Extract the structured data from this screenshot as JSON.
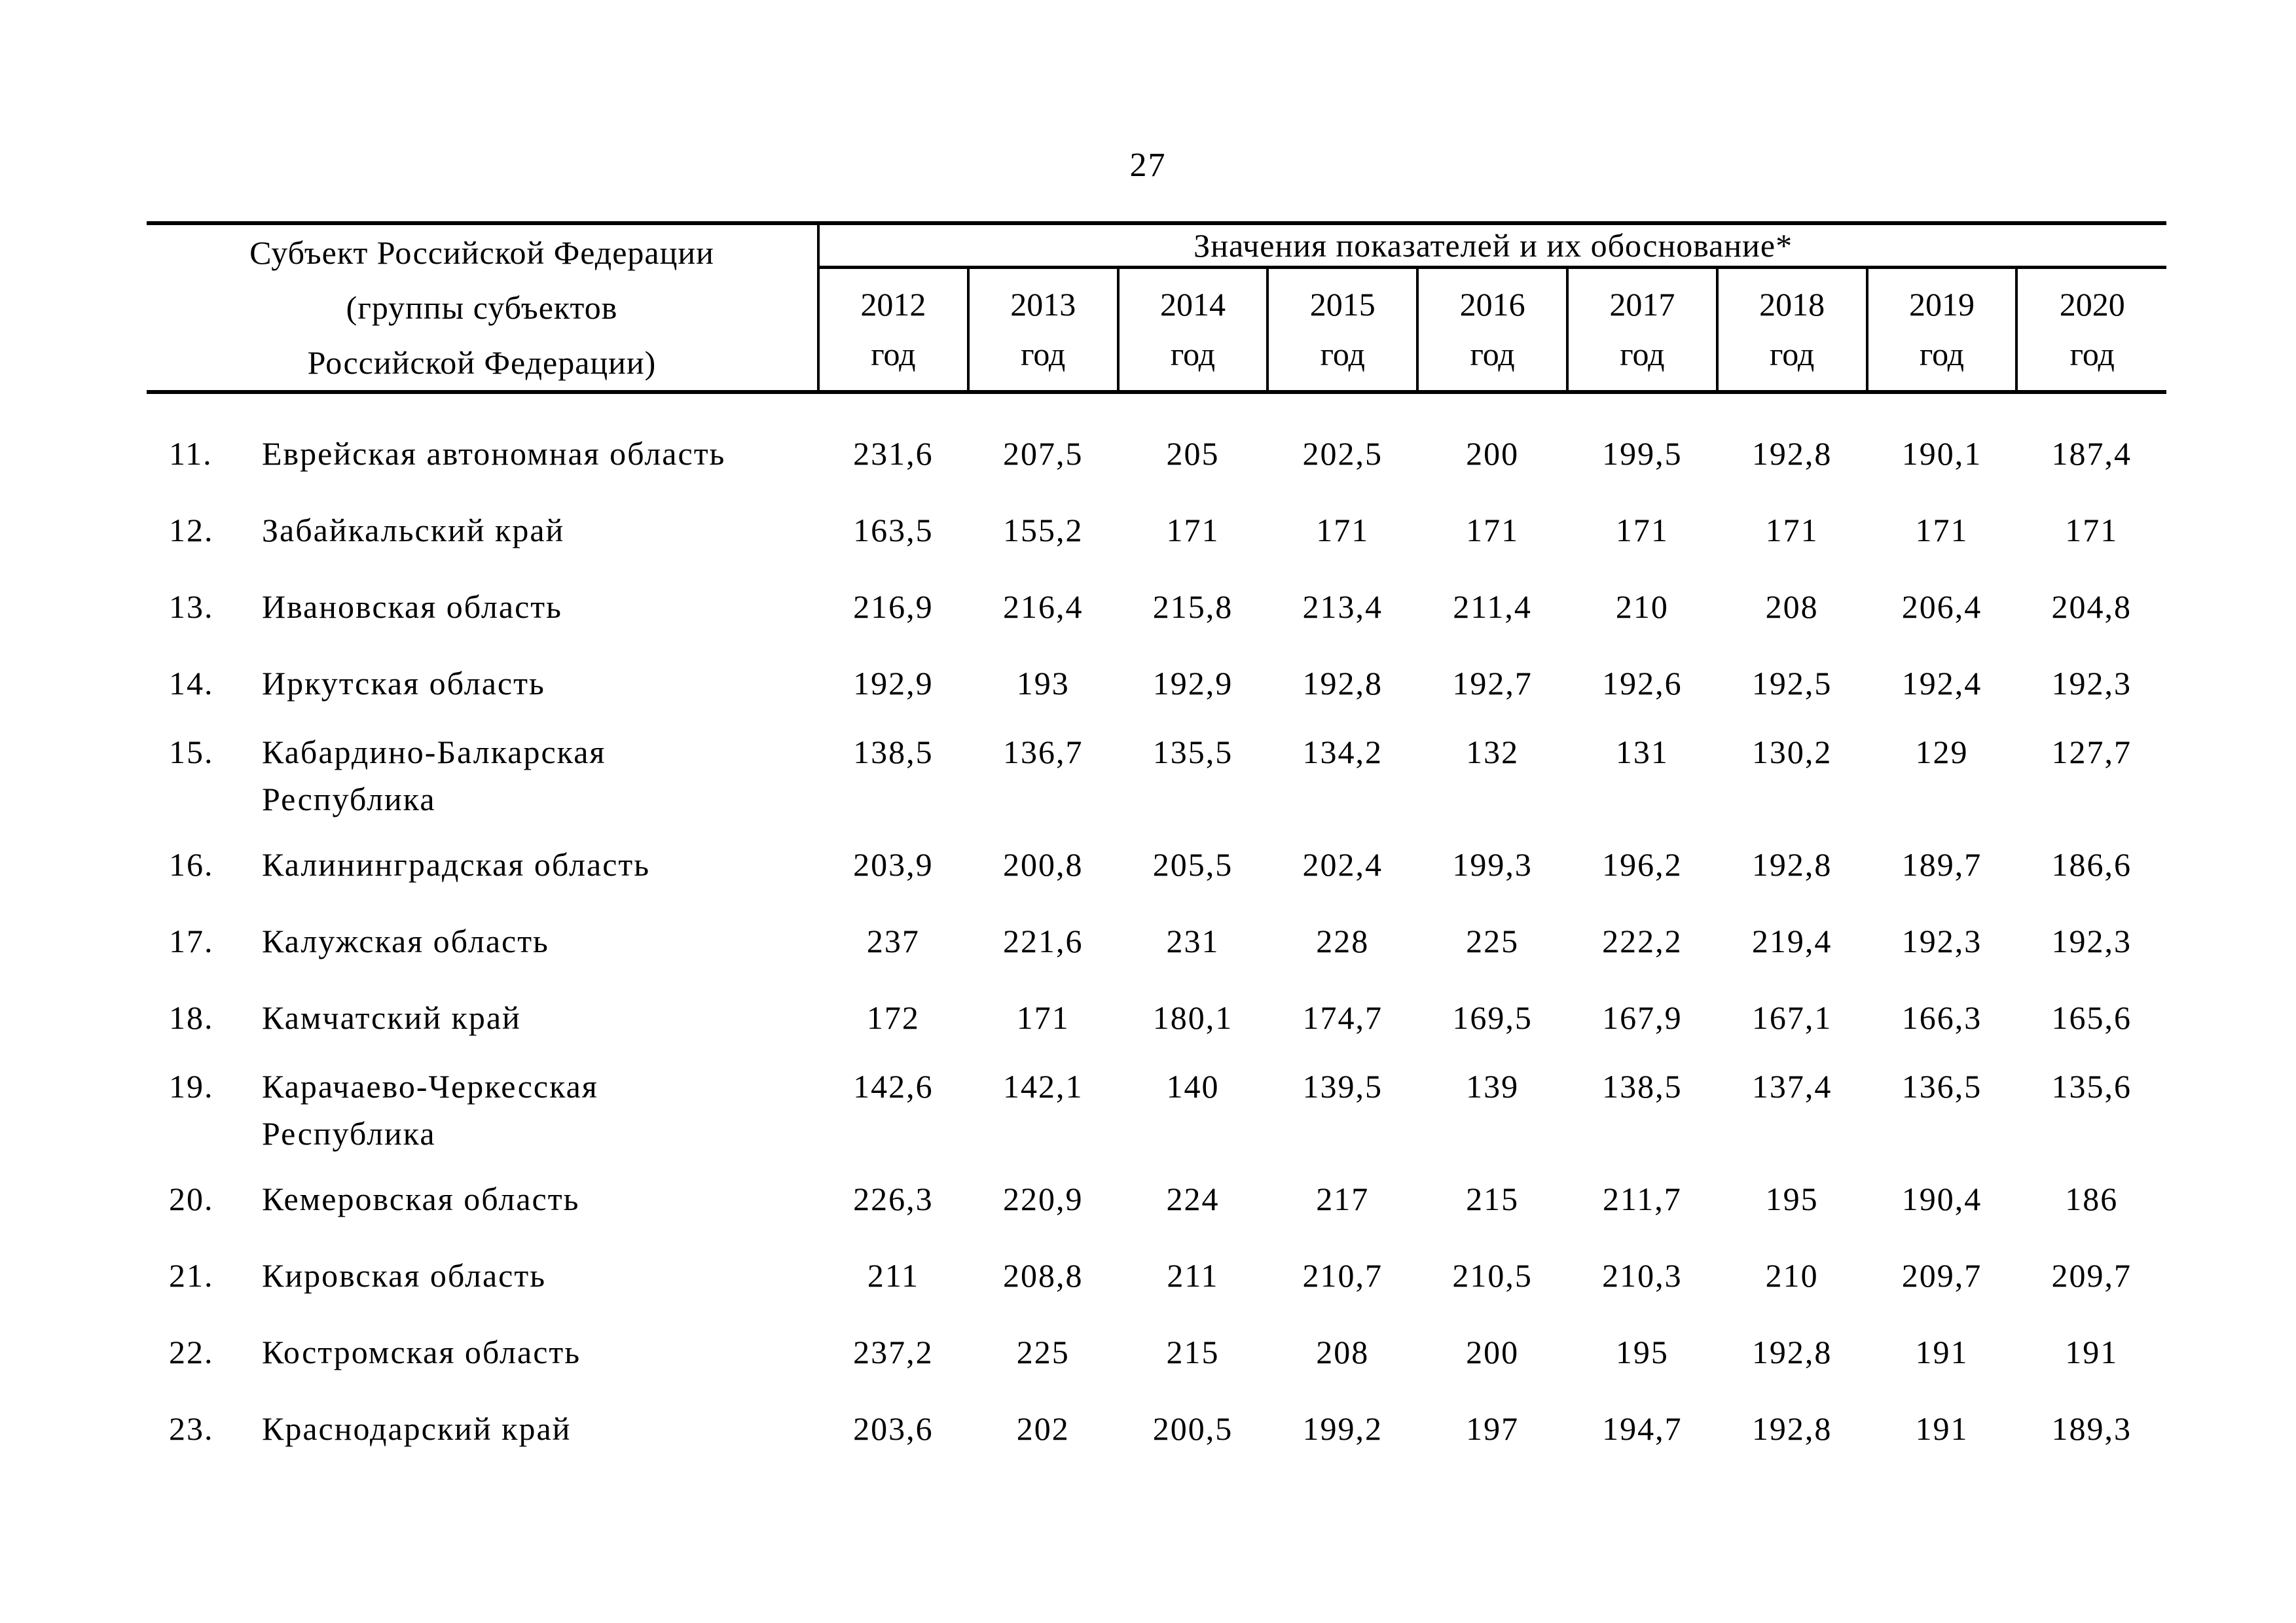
{
  "page_number": "27",
  "table": {
    "header": {
      "subject": "Субъект Российской Федерации\n(группы субъектов\nРоссийской Федерации)",
      "values_title": "Значения показателей и их обоснование*",
      "years": [
        "2012",
        "2013",
        "2014",
        "2015",
        "2016",
        "2017",
        "2018",
        "2019",
        "2020"
      ],
      "year_unit": "год"
    },
    "rows": [
      {
        "num": "11.",
        "name": "Еврейская автономная область",
        "values": [
          "231,6",
          "207,5",
          "205",
          "202,5",
          "200",
          "199,5",
          "192,8",
          "190,1",
          "187,4"
        ]
      },
      {
        "num": "12.",
        "name": "Забайкальский край",
        "values": [
          "163,5",
          "155,2",
          "171",
          "171",
          "171",
          "171",
          "171",
          "171",
          "171"
        ]
      },
      {
        "num": "13.",
        "name": "Ивановская область",
        "values": [
          "216,9",
          "216,4",
          "215,8",
          "213,4",
          "211,4",
          "210",
          "208",
          "206,4",
          "204,8"
        ]
      },
      {
        "num": "14.",
        "name": "Иркутская область",
        "values": [
          "192,9",
          "193",
          "192,9",
          "192,8",
          "192,7",
          "192,6",
          "192,5",
          "192,4",
          "192,3"
        ]
      },
      {
        "num": "15.",
        "name": "Кабардино-Балкарская\nРеспублика",
        "values": [
          "138,5",
          "136,7",
          "135,5",
          "134,2",
          "132",
          "131",
          "130,2",
          "129",
          "127,7"
        ]
      },
      {
        "num": "16.",
        "name": "Калининградская область",
        "values": [
          "203,9",
          "200,8",
          "205,5",
          "202,4",
          "199,3",
          "196,2",
          "192,8",
          "189,7",
          "186,6"
        ]
      },
      {
        "num": "17.",
        "name": "Калужская область",
        "values": [
          "237",
          "221,6",
          "231",
          "228",
          "225",
          "222,2",
          "219,4",
          "192,3",
          "192,3"
        ]
      },
      {
        "num": "18.",
        "name": "Камчатский край",
        "values": [
          "172",
          "171",
          "180,1",
          "174,7",
          "169,5",
          "167,9",
          "167,1",
          "166,3",
          "165,6"
        ]
      },
      {
        "num": "19.",
        "name": "Карачаево-Черкесская\nРеспублика",
        "values": [
          "142,6",
          "142,1",
          "140",
          "139,5",
          "139",
          "138,5",
          "137,4",
          "136,5",
          "135,6"
        ]
      },
      {
        "num": "20.",
        "name": "Кемеровская область",
        "values": [
          "226,3",
          "220,9",
          "224",
          "217",
          "215",
          "211,7",
          "195",
          "190,4",
          "186"
        ]
      },
      {
        "num": "21.",
        "name": "Кировская область",
        "values": [
          "211",
          "208,8",
          "211",
          "210,7",
          "210,5",
          "210,3",
          "210",
          "209,7",
          "209,7"
        ]
      },
      {
        "num": "22.",
        "name": "Костромская область",
        "values": [
          "237,2",
          "225",
          "215",
          "208",
          "200",
          "195",
          "192,8",
          "191",
          "191"
        ]
      },
      {
        "num": "23.",
        "name": "Краснодарский край",
        "values": [
          "203,6",
          "202",
          "200,5",
          "199,2",
          "197",
          "194,7",
          "192,8",
          "191",
          "189,3"
        ]
      }
    ]
  }
}
